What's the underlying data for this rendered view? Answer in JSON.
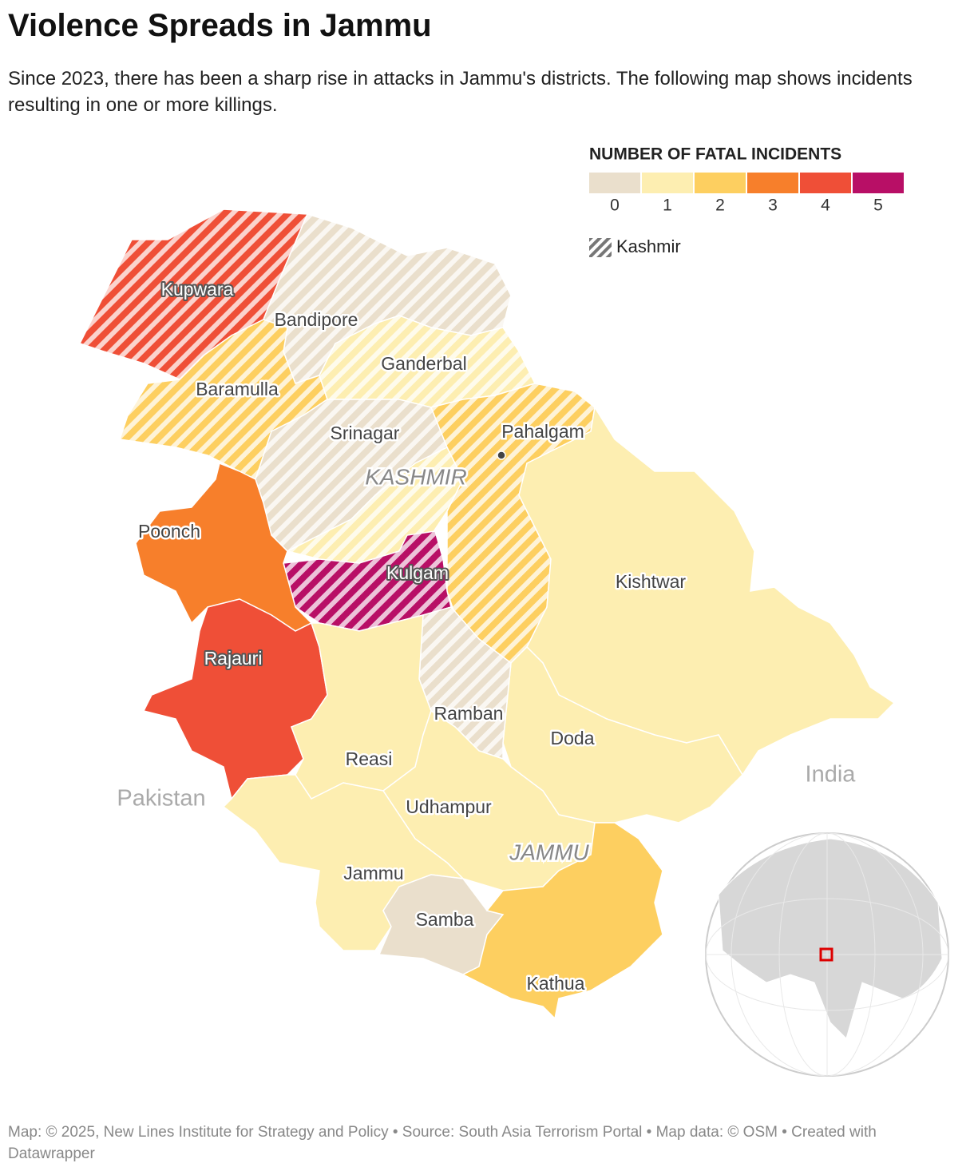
{
  "title": "Violence Spreads in Jammu",
  "subtitle": "Since 2023, there has been a sharp rise in attacks in Jammu's districts. The following map shows incidents resulting in one or more killings.",
  "legend": {
    "title": "NUMBER OF FATAL INCIDENTS",
    "bins": [
      {
        "value": 0,
        "color": "#eadfcc"
      },
      {
        "value": 1,
        "color": "#fdeeb1"
      },
      {
        "value": 2,
        "color": "#fdcf60"
      },
      {
        "value": 3,
        "color": "#f77f2b"
      },
      {
        "value": 4,
        "color": "#ef4f37"
      },
      {
        "value": 5,
        "color": "#b80f66"
      }
    ],
    "hatch_label": "Kashmir"
  },
  "districts": [
    {
      "name": "Kupwara",
      "incidents": 4,
      "hatched": true
    },
    {
      "name": "Bandipore",
      "incidents": 0,
      "hatched": true
    },
    {
      "name": "Baramulla",
      "incidents": 2,
      "hatched": true
    },
    {
      "name": "Ganderbal",
      "incidents": 1,
      "hatched": true
    },
    {
      "name": "Srinagar",
      "incidents": 0,
      "hatched": true
    },
    {
      "name": null,
      "incidents": 1,
      "hatched": true
    },
    {
      "name": null,
      "incidents": 2,
      "hatched": true
    },
    {
      "name": "Kulgam",
      "incidents": 5,
      "hatched": true
    },
    {
      "name": "Kishtwar",
      "incidents": 1,
      "hatched": false
    },
    {
      "name": "Doda",
      "incidents": 1,
      "hatched": false
    },
    {
      "name": "Ramban",
      "incidents": 0,
      "hatched": true
    },
    {
      "name": "Poonch",
      "incidents": 3,
      "hatched": false
    },
    {
      "name": "Rajauri",
      "incidents": 4,
      "hatched": false
    },
    {
      "name": "Reasi",
      "incidents": 1,
      "hatched": false
    },
    {
      "name": "Udhampur",
      "incidents": 1,
      "hatched": false
    },
    {
      "name": "Jammu",
      "incidents": 1,
      "hatched": false
    },
    {
      "name": "Samba",
      "incidents": 0,
      "hatched": false
    },
    {
      "name": "Kathua",
      "incidents": 2,
      "hatched": false
    }
  ],
  "place": "Pahalgam",
  "region_labels": [
    "KASHMIR",
    "JAMMU"
  ],
  "country_labels": [
    "Pakistan",
    "India"
  ],
  "footer": "Map: © 2025, New Lines Institute for Strategy and Policy • Source: South Asia Terrorism Portal • Map data: © OSM • Created with Datawrapper"
}
